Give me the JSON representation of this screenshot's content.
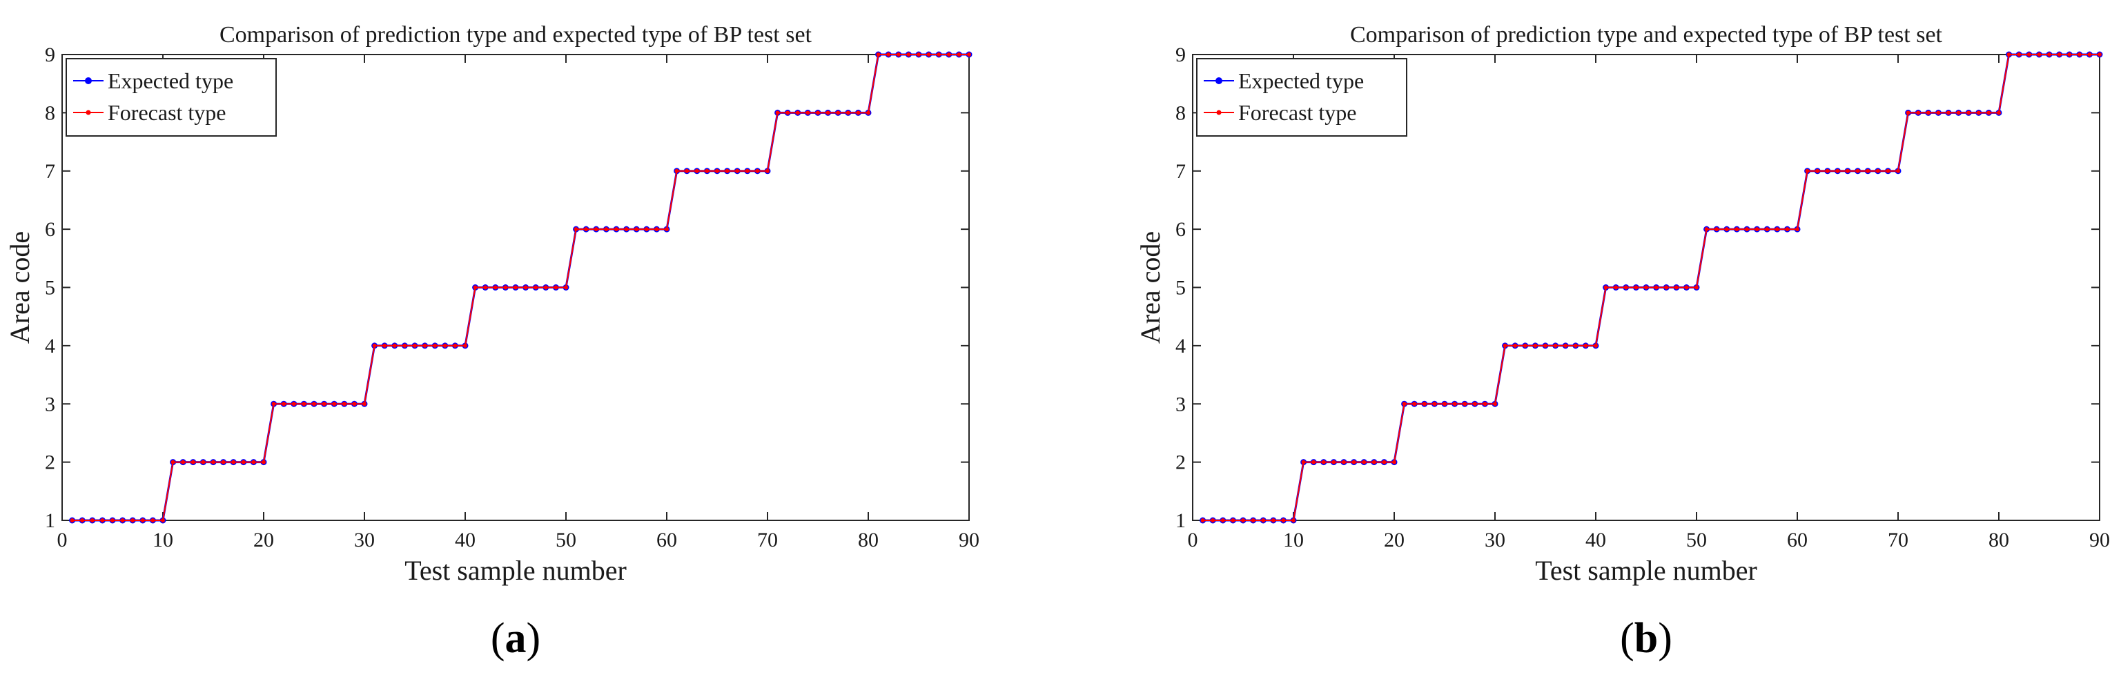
{
  "colors": {
    "expected": "#0000ff",
    "forecast": "#ff0000",
    "axis": "#262626",
    "background": "#ffffff"
  },
  "chart_data": [
    {
      "type": "line",
      "panel_label": {
        "open": "(",
        "letter": "a",
        "close": ")"
      },
      "title": "Comparison of prediction type and expected type of BP test set",
      "xlabel": "Test sample number",
      "ylabel": "Area code",
      "xlim": [
        0,
        90
      ],
      "ylim": [
        1,
        9
      ],
      "xticks": [
        0,
        10,
        20,
        30,
        40,
        50,
        60,
        70,
        80,
        90
      ],
      "yticks": [
        1,
        2,
        3,
        4,
        5,
        6,
        7,
        8,
        9
      ],
      "grid": false,
      "legend_position": "top-left",
      "x": [
        1,
        2,
        3,
        4,
        5,
        6,
        7,
        8,
        9,
        10,
        11,
        12,
        13,
        14,
        15,
        16,
        17,
        18,
        19,
        20,
        21,
        22,
        23,
        24,
        25,
        26,
        27,
        28,
        29,
        30,
        31,
        32,
        33,
        34,
        35,
        36,
        37,
        38,
        39,
        40,
        41,
        42,
        43,
        44,
        45,
        46,
        47,
        48,
        49,
        50,
        51,
        52,
        53,
        54,
        55,
        56,
        57,
        58,
        59,
        60,
        61,
        62,
        63,
        64,
        65,
        66,
        67,
        68,
        69,
        70,
        71,
        72,
        73,
        74,
        75,
        76,
        77,
        78,
        79,
        80,
        81,
        82,
        83,
        84,
        85,
        86,
        87,
        88,
        89,
        90
      ],
      "series": [
        {
          "name": "Expected type",
          "color": "#0000ff",
          "marker": "circle",
          "values": [
            1,
            1,
            1,
            1,
            1,
            1,
            1,
            1,
            1,
            1,
            2,
            2,
            2,
            2,
            2,
            2,
            2,
            2,
            2,
            2,
            3,
            3,
            3,
            3,
            3,
            3,
            3,
            3,
            3,
            3,
            4,
            4,
            4,
            4,
            4,
            4,
            4,
            4,
            4,
            4,
            5,
            5,
            5,
            5,
            5,
            5,
            5,
            5,
            5,
            5,
            6,
            6,
            6,
            6,
            6,
            6,
            6,
            6,
            6,
            6,
            7,
            7,
            7,
            7,
            7,
            7,
            7,
            7,
            7,
            7,
            8,
            8,
            8,
            8,
            8,
            8,
            8,
            8,
            8,
            8,
            9,
            9,
            9,
            9,
            9,
            9,
            9,
            9,
            9,
            9
          ]
        },
        {
          "name": "Forecast type",
          "color": "#ff0000",
          "marker": "dot",
          "values": [
            1,
            1,
            1,
            1,
            1,
            1,
            1,
            1,
            1,
            1,
            2,
            2,
            2,
            2,
            2,
            2,
            2,
            2,
            2,
            2,
            3,
            3,
            3,
            3,
            3,
            3,
            3,
            3,
            3,
            3,
            4,
            4,
            4,
            4,
            4,
            4,
            4,
            4,
            4,
            4,
            5,
            5,
            5,
            5,
            5,
            5,
            5,
            5,
            5,
            5,
            6,
            6,
            6,
            6,
            6,
            6,
            6,
            6,
            6,
            6,
            7,
            7,
            7,
            7,
            7,
            7,
            7,
            7,
            7,
            7,
            8,
            8,
            8,
            8,
            8,
            8,
            8,
            8,
            8,
            8,
            9,
            9,
            9,
            9,
            9,
            9,
            9,
            9,
            9,
            9
          ]
        }
      ]
    },
    {
      "type": "line",
      "panel_label": {
        "open": "(",
        "letter": "b",
        "close": ")"
      },
      "title": "Comparison of prediction type and expected type of BP test set",
      "xlabel": "Test sample number",
      "ylabel": "Area code",
      "xlim": [
        0,
        90
      ],
      "ylim": [
        1,
        9
      ],
      "xticks": [
        0,
        10,
        20,
        30,
        40,
        50,
        60,
        70,
        80,
        90
      ],
      "yticks": [
        1,
        2,
        3,
        4,
        5,
        6,
        7,
        8,
        9
      ],
      "grid": false,
      "legend_position": "top-left",
      "x": [
        1,
        2,
        3,
        4,
        5,
        6,
        7,
        8,
        9,
        10,
        11,
        12,
        13,
        14,
        15,
        16,
        17,
        18,
        19,
        20,
        21,
        22,
        23,
        24,
        25,
        26,
        27,
        28,
        29,
        30,
        31,
        32,
        33,
        34,
        35,
        36,
        37,
        38,
        39,
        40,
        41,
        42,
        43,
        44,
        45,
        46,
        47,
        48,
        49,
        50,
        51,
        52,
        53,
        54,
        55,
        56,
        57,
        58,
        59,
        60,
        61,
        62,
        63,
        64,
        65,
        66,
        67,
        68,
        69,
        70,
        71,
        72,
        73,
        74,
        75,
        76,
        77,
        78,
        79,
        80,
        81,
        82,
        83,
        84,
        85,
        86,
        87,
        88,
        89,
        90
      ],
      "series": [
        {
          "name": "Expected type",
          "color": "#0000ff",
          "marker": "circle",
          "values": [
            1,
            1,
            1,
            1,
            1,
            1,
            1,
            1,
            1,
            1,
            2,
            2,
            2,
            2,
            2,
            2,
            2,
            2,
            2,
            2,
            3,
            3,
            3,
            3,
            3,
            3,
            3,
            3,
            3,
            3,
            4,
            4,
            4,
            4,
            4,
            4,
            4,
            4,
            4,
            4,
            5,
            5,
            5,
            5,
            5,
            5,
            5,
            5,
            5,
            5,
            6,
            6,
            6,
            6,
            6,
            6,
            6,
            6,
            6,
            6,
            7,
            7,
            7,
            7,
            7,
            7,
            7,
            7,
            7,
            7,
            8,
            8,
            8,
            8,
            8,
            8,
            8,
            8,
            8,
            8,
            9,
            9,
            9,
            9,
            9,
            9,
            9,
            9,
            9,
            9
          ]
        },
        {
          "name": "Forecast type",
          "color": "#ff0000",
          "marker": "dot",
          "values": [
            1,
            1,
            1,
            1,
            1,
            1,
            1,
            1,
            1,
            1,
            2,
            2,
            2,
            2,
            2,
            2,
            2,
            2,
            2,
            2,
            3,
            3,
            3,
            3,
            3,
            3,
            3,
            3,
            3,
            3,
            4,
            4,
            4,
            4,
            4,
            4,
            4,
            4,
            4,
            4,
            5,
            5,
            5,
            5,
            5,
            5,
            5,
            5,
            5,
            5,
            6,
            6,
            6,
            6,
            6,
            6,
            6,
            6,
            6,
            6,
            7,
            7,
            7,
            7,
            7,
            7,
            7,
            7,
            7,
            7,
            8,
            8,
            8,
            8,
            8,
            8,
            8,
            8,
            8,
            8,
            9,
            9,
            9,
            9,
            9,
            9,
            9,
            9,
            9,
            9
          ]
        }
      ]
    }
  ]
}
